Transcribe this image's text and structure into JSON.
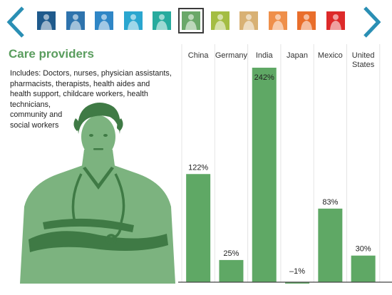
{
  "nav": {
    "thumbnails": [
      {
        "icon": "worker-thumbnail-icon",
        "color": "#1f5a8c"
      },
      {
        "icon": "worker-thumbnail-icon",
        "color": "#2e73ad"
      },
      {
        "icon": "worker-thumbnail-icon",
        "color": "#2f86c6"
      },
      {
        "icon": "worker-thumbnail-icon",
        "color": "#2aa6cf"
      },
      {
        "icon": "worker-thumbnail-icon",
        "color": "#27ab9e"
      },
      {
        "icon": "worker-thumbnail-icon",
        "color": "#6aa869",
        "selected": true
      },
      {
        "icon": "worker-thumbnail-icon",
        "color": "#a4bd43"
      },
      {
        "icon": "worker-thumbnail-icon",
        "color": "#d8b174"
      },
      {
        "icon": "worker-thumbnail-icon",
        "color": "#ef8f4a"
      },
      {
        "icon": "worker-thumbnail-icon",
        "color": "#e96e2b"
      },
      {
        "icon": "worker-thumbnail-icon",
        "color": "#dd2a2a"
      },
      {
        "icon": "worker-thumbnail-icon",
        "color": "#d9a44a"
      }
    ],
    "arrow_color": "#2a8fb4"
  },
  "header": {
    "title": "Care providers"
  },
  "description": {
    "lines": [
      "Includes: Doctors, nurses, physician assistants,",
      "pharmacists, therapists, health aides and",
      "health support, childcare workers, health",
      "technicians,",
      "community and",
      "social workers"
    ]
  },
  "colors": {
    "accent": "#5a9d5e",
    "bar": "#5fa865",
    "figure": "#7cb37f",
    "figure_dark": "#3f7a45"
  },
  "chart_data": {
    "type": "bar",
    "categories": [
      "China",
      "Germany",
      "India",
      "Japan",
      "Mexico",
      "United States"
    ],
    "values": [
      122,
      25,
      242,
      -1,
      83,
      30
    ],
    "value_labels": [
      "122%",
      "25%",
      "242%",
      "–1%",
      "83%",
      "30%"
    ],
    "title": "Care providers",
    "xlabel": "",
    "ylabel": "",
    "ylim": [
      -1,
      242
    ],
    "grid": false
  }
}
